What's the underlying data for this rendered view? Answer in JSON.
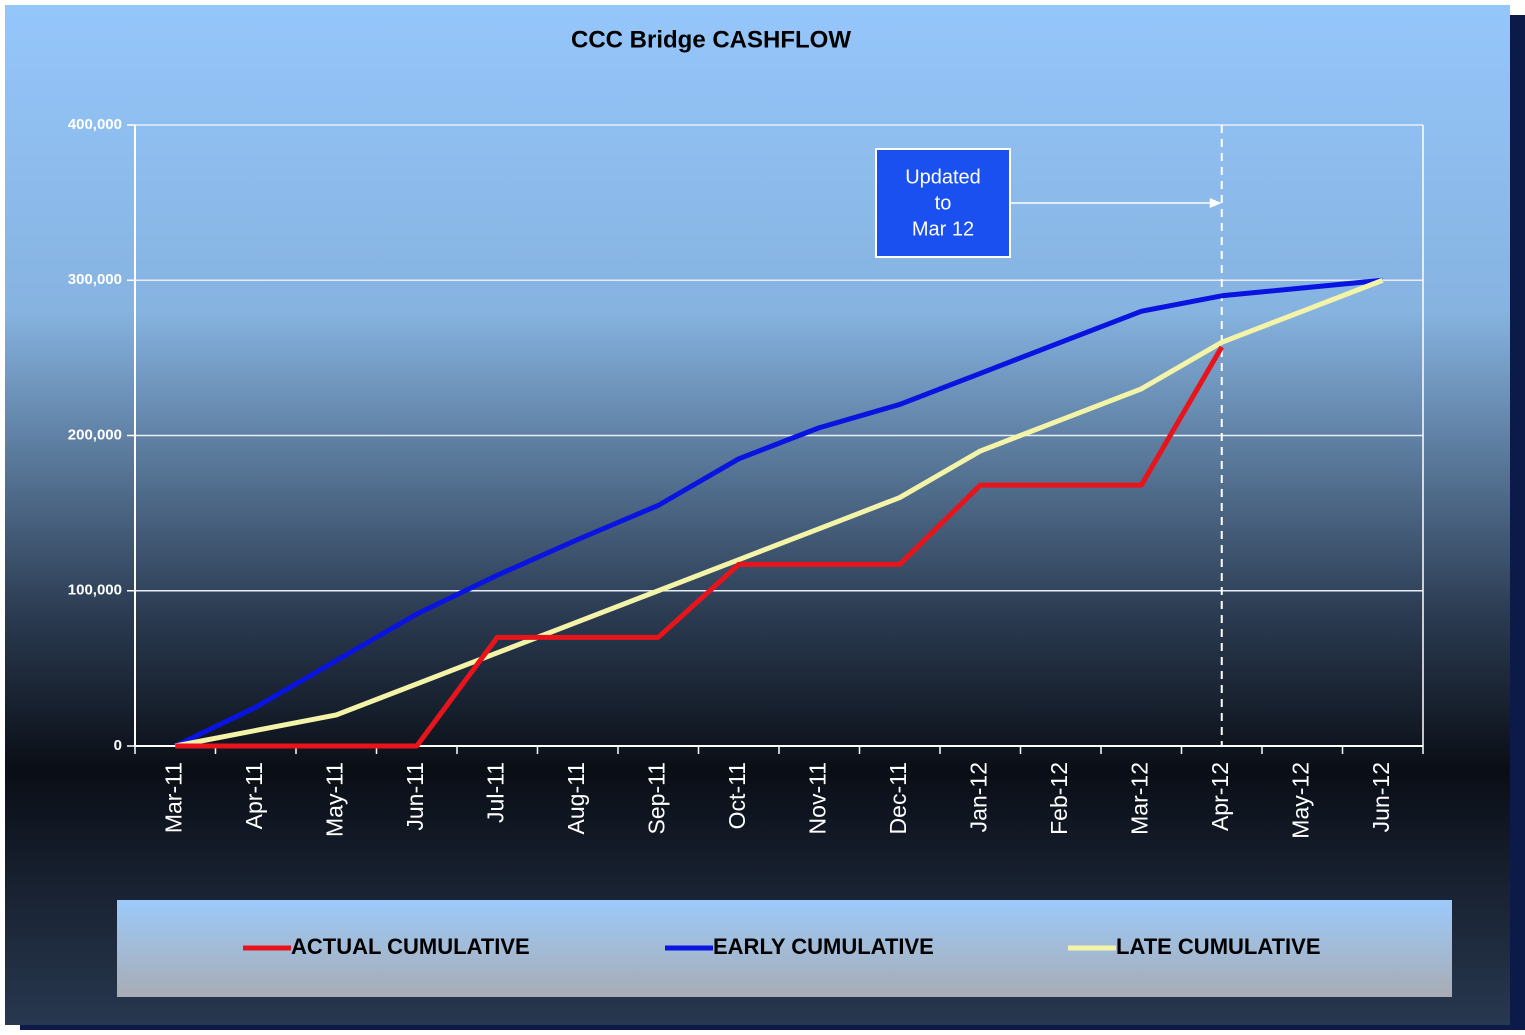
{
  "chart_data": {
    "type": "line",
    "title": "CCC Bridge CASHFLOW",
    "categories": [
      "Mar-11",
      "Apr-11",
      "May-11",
      "Jun-11",
      "Jul-11",
      "Aug-11",
      "Sep-11",
      "Oct-11",
      "Nov-11",
      "Dec-11",
      "Jan-12",
      "Feb-12",
      "Mar-12",
      "Apr-12",
      "May-12",
      "Jun-12"
    ],
    "series": [
      {
        "name": "ACTUAL CUMULATIVE",
        "color": "#e8141c",
        "values": [
          0,
          0,
          0,
          0,
          70000,
          70000,
          70000,
          117000,
          117000,
          117000,
          168000,
          168000,
          168000,
          257000,
          null,
          null
        ]
      },
      {
        "name": "EARLY CUMULATIVE",
        "color": "#0a14e0",
        "values": [
          0,
          25000,
          55000,
          85000,
          110000,
          133000,
          155000,
          185000,
          205000,
          220000,
          240000,
          260000,
          280000,
          290000,
          295000,
          300000
        ]
      },
      {
        "name": "LATE CUMULATIVE",
        "color": "#f4f4a8",
        "values": [
          0,
          10000,
          20000,
          40000,
          60000,
          80000,
          100000,
          120000,
          140000,
          160000,
          190000,
          210000,
          230000,
          260000,
          280000,
          300000
        ]
      }
    ],
    "ylim": [
      0,
      400000
    ],
    "yticks": [
      0,
      {
        "value": 100000,
        "label": "100,000"
      },
      {
        "value": 200000,
        "label": "200,000"
      },
      {
        "value": 300000,
        "label": "300,000"
      },
      {
        "value": 400000,
        "label": "400,000"
      }
    ],
    "grid": true,
    "legend": "bottom",
    "annotation": [
      "Updated",
      "to",
      "Mar 12"
    ]
  }
}
